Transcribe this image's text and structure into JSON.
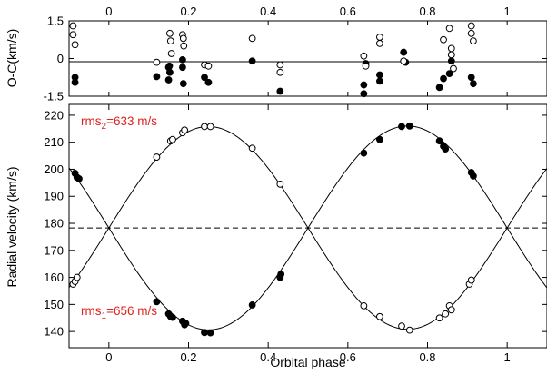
{
  "chart_data": [
    {
      "type": "scatter",
      "panel": "residuals",
      "ylabel": "O-C(km/s)",
      "x_ticks": [
        "0",
        "0.2",
        "0.4",
        "0.6",
        "0.8",
        "1"
      ],
      "x_tick_values": [
        0,
        0.2,
        0.4,
        0.6,
        0.8,
        1.0
      ],
      "y_ticks": [
        "-1.5",
        "0",
        "1.5"
      ],
      "y_tick_values": [
        -1.5,
        0,
        1.5
      ],
      "xlim": [
        -0.1,
        1.1
      ],
      "ylim": [
        -1.5,
        1.5
      ],
      "x_tick_labels_position": "top",
      "zero_line": 0,
      "series": [
        {
          "marker": "filled-circle",
          "color": "#000000",
          "points": [
            [
              -0.085,
              -0.75
            ],
            [
              -0.085,
              -0.95
            ],
            [
              0.12,
              -0.72
            ],
            [
              0.15,
              -0.35
            ],
            [
              0.15,
              -0.85
            ],
            [
              0.152,
              -0.3
            ],
            [
              0.153,
              -0.55
            ],
            [
              0.185,
              -0.05
            ],
            [
              0.185,
              -0.35
            ],
            [
              0.187,
              -1.0
            ],
            [
              0.24,
              -0.75
            ],
            [
              0.25,
              -0.95
            ],
            [
              0.36,
              -0.1
            ],
            [
              0.43,
              -1.3
            ],
            [
              0.64,
              -1.05
            ],
            [
              0.64,
              -1.4
            ],
            [
              0.645,
              -0.2
            ],
            [
              0.68,
              -0.65
            ],
            [
              0.68,
              -0.9
            ],
            [
              0.74,
              0.25
            ],
            [
              0.745,
              -0.15
            ],
            [
              0.83,
              -1.15
            ],
            [
              0.84,
              -0.8
            ],
            [
              0.855,
              -0.6
            ],
            [
              0.86,
              0.15
            ],
            [
              0.86,
              -0.1
            ],
            [
              0.91,
              -0.75
            ],
            [
              0.915,
              -1.0
            ]
          ]
        },
        {
          "marker": "open-circle",
          "color": "#000000",
          "points": [
            [
              -0.09,
              1.3
            ],
            [
              -0.09,
              0.95
            ],
            [
              -0.085,
              0.55
            ],
            [
              0.12,
              -0.15
            ],
            [
              0.153,
              1.0
            ],
            [
              0.155,
              0.7
            ],
            [
              0.157,
              0.2
            ],
            [
              0.185,
              0.95
            ],
            [
              0.187,
              0.8
            ],
            [
              0.188,
              0.5
            ],
            [
              0.24,
              -0.25
            ],
            [
              0.25,
              -0.3
            ],
            [
              0.36,
              0.8
            ],
            [
              0.43,
              -0.25
            ],
            [
              0.43,
              -0.55
            ],
            [
              0.64,
              0.1
            ],
            [
              0.645,
              -0.3
            ],
            [
              0.68,
              0.85
            ],
            [
              0.68,
              0.6
            ],
            [
              0.74,
              -0.1
            ],
            [
              0.84,
              0.75
            ],
            [
              0.855,
              1.2
            ],
            [
              0.86,
              0.4
            ],
            [
              0.86,
              0.15
            ],
            [
              0.865,
              -0.4
            ],
            [
              0.91,
              1.3
            ],
            [
              0.91,
              1.0
            ],
            [
              0.915,
              0.7
            ]
          ]
        }
      ]
    },
    {
      "type": "line",
      "panel": "radial-velocity",
      "xlabel": "Orbital phase",
      "ylabel": "Radial velocity (km/s)",
      "x_ticks": [
        "0",
        "0.2",
        "0.4",
        "0.6",
        "0.8",
        "1"
      ],
      "x_tick_values": [
        0,
        0.2,
        0.4,
        0.6,
        0.8,
        1.0
      ],
      "y_ticks": [
        "140",
        "150",
        "160",
        "170",
        "180",
        "190",
        "200",
        "210",
        "220"
      ],
      "y_tick_values": [
        140,
        150,
        160,
        170,
        180,
        190,
        200,
        210,
        220
      ],
      "xlim": [
        -0.1,
        1.1
      ],
      "ylim": [
        134,
        224
      ],
      "systemic_velocity": 178.3,
      "semi_amplitude_1": 37.7,
      "semi_amplitude_2": 37.5,
      "annotations": [
        {
          "id": "rms2",
          "base": "rms",
          "sub": "2",
          "value": "=633 m/s",
          "color": "#dd2222"
        },
        {
          "id": "rms1",
          "base": "rms",
          "sub": "1",
          "value": "=656 m/s",
          "color": "#dd2222"
        }
      ],
      "series": [
        {
          "marker": "filled-circle",
          "color": "#000000",
          "points": [
            [
              -0.085,
              198.5
            ],
            [
              -0.08,
              197.0
            ],
            [
              -0.075,
              196.5
            ],
            [
              0.12,
              151.0
            ],
            [
              0.15,
              146.5
            ],
            [
              0.155,
              145.5
            ],
            [
              0.16,
              145.2
            ],
            [
              0.185,
              143.8
            ],
            [
              0.19,
              142.5
            ],
            [
              0.193,
              143.0
            ],
            [
              0.24,
              139.6
            ],
            [
              0.255,
              139.5
            ],
            [
              0.36,
              149.8
            ],
            [
              0.43,
              160.0
            ],
            [
              0.432,
              161.2
            ],
            [
              0.64,
              206.0
            ],
            [
              0.68,
              211.0
            ],
            [
              0.735,
              215.8
            ],
            [
              0.755,
              216.0
            ],
            [
              0.83,
              210.5
            ],
            [
              0.84,
              208.5
            ],
            [
              0.845,
              207.5
            ],
            [
              0.91,
              198.8
            ],
            [
              0.915,
              197.5
            ]
          ]
        },
        {
          "marker": "open-circle",
          "color": "#000000",
          "points": [
            [
              -0.09,
              157.5
            ],
            [
              -0.085,
              158.5
            ],
            [
              -0.08,
              160.0
            ],
            [
              0.12,
              204.5
            ],
            [
              0.155,
              210.5
            ],
            [
              0.16,
              211.0
            ],
            [
              0.185,
              213.5
            ],
            [
              0.19,
              214.5
            ],
            [
              0.24,
              215.8
            ],
            [
              0.255,
              215.8
            ],
            [
              0.36,
              207.8
            ],
            [
              0.43,
              194.5
            ],
            [
              0.64,
              149.5
            ],
            [
              0.68,
              145.5
            ],
            [
              0.735,
              142.0
            ],
            [
              0.755,
              140.5
            ],
            [
              0.83,
              145.0
            ],
            [
              0.845,
              146.5
            ],
            [
              0.855,
              149.5
            ],
            [
              0.86,
              148.0
            ],
            [
              0.905,
              157.5
            ],
            [
              0.91,
              159.0
            ]
          ]
        }
      ]
    }
  ]
}
